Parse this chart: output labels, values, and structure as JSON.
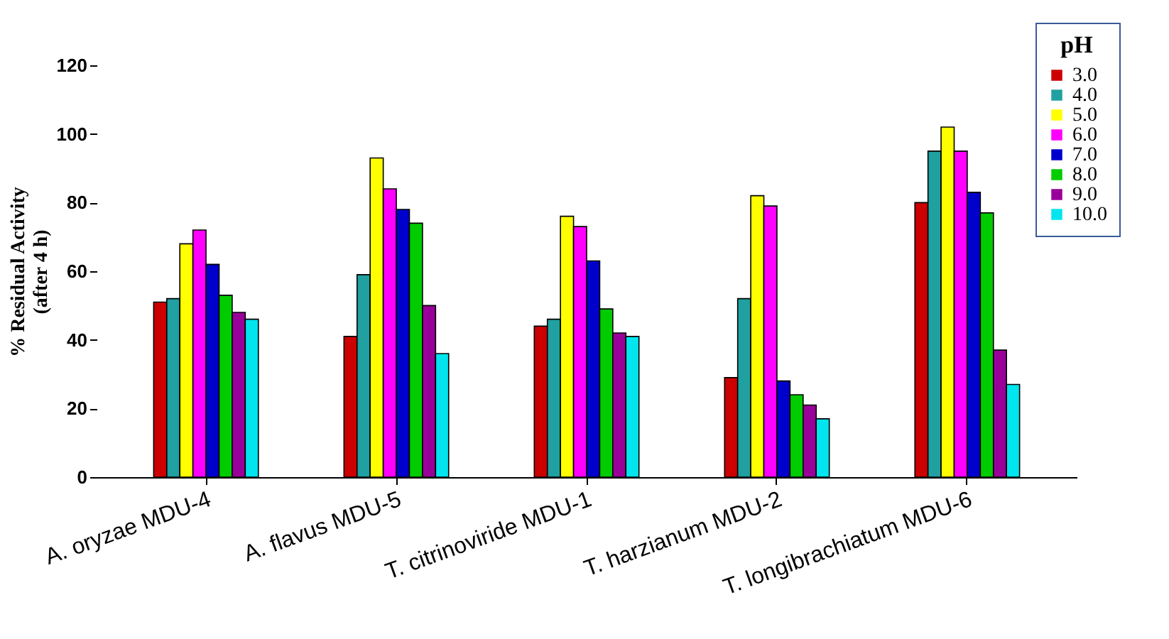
{
  "chart_data": {
    "type": "bar",
    "ylabel": "% Residual Activity\n(after 4 h)",
    "legend_title": "pH",
    "categories": [
      "A. oryzae MDU-4",
      "A. flavus MDU-5",
      "T. citrinoviride MDU-1",
      "T. harzianum MDU-2",
      "T. longibrachiatum MDU-6"
    ],
    "series": [
      {
        "name": "3.0",
        "color": "#cc0000",
        "values": [
          51,
          41,
          44,
          29,
          80
        ]
      },
      {
        "name": "4.0",
        "color": "#20a0a0",
        "values": [
          52,
          59,
          46,
          52,
          95
        ]
      },
      {
        "name": "5.0",
        "color": "#ffff00",
        "values": [
          68,
          93,
          76,
          82,
          102
        ]
      },
      {
        "name": "6.0",
        "color": "#ff00ff",
        "values": [
          72,
          84,
          73,
          79,
          95
        ]
      },
      {
        "name": "7.0",
        "color": "#0000cc",
        "values": [
          62,
          78,
          63,
          28,
          83
        ]
      },
      {
        "name": "8.0",
        "color": "#00cc00",
        "values": [
          53,
          74,
          49,
          24,
          77
        ]
      },
      {
        "name": "9.0",
        "color": "#990099",
        "values": [
          48,
          50,
          42,
          21,
          37
        ]
      },
      {
        "name": "10.0",
        "color": "#00e5ee",
        "values": [
          46,
          36,
          41,
          17,
          27
        ]
      }
    ],
    "ylim": [
      0,
      120
    ],
    "yticks": [
      0,
      20,
      40,
      60,
      80,
      100,
      120
    ],
    "grid": false,
    "legend": "top right"
  }
}
